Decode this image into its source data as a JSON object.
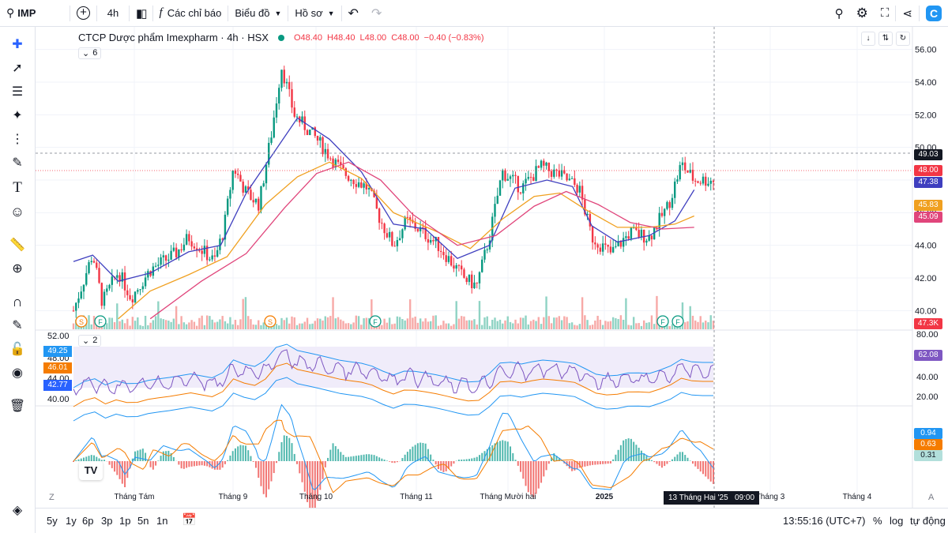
{
  "toolbar": {
    "symbol": "IMP",
    "interval": "4h",
    "indicators": "Các chỉ báo",
    "chart_menu": "Biểu đồ",
    "profile_menu": "Hồ sơ"
  },
  "legend": {
    "title": "CTCP Dược phẩm Imexpharm · 4h · HSX",
    "o": "O48.40",
    "h": "H48.40",
    "l": "L48.00",
    "c": "C48.00",
    "chg": "−0.40 (−0.83%)",
    "ind_count": "6"
  },
  "rsi_pane": {
    "ind_count": "2",
    "tags": [
      "49.25",
      "46.01",
      "42.77"
    ],
    "left_ticks": [
      "52.00",
      "48.00",
      "44.00",
      "40.00"
    ],
    "right_ticks": [
      "80.00",
      "40.00",
      "20.00"
    ],
    "current": "62.08"
  },
  "macd_pane": {
    "tags": [
      "0.94",
      "0.63",
      "0.31"
    ]
  },
  "price_tags": {
    "t1": "49.03",
    "t2": "48.00",
    "t3": "47.38",
    "t4": "45.83",
    "t5": "45.09",
    "vol": "47.3K"
  },
  "events": [
    "S",
    "F",
    "S",
    "F",
    "F",
    "F"
  ],
  "ranges": [
    "5y",
    "1y",
    "6p",
    "3p",
    "1p",
    "5n",
    "1n"
  ],
  "footer": {
    "time": "13:55:16 (UTC+7)",
    "pct": "%",
    "log": "log",
    "auto": "tự động"
  },
  "crosshair_label": "13 Tháng Hai '25   09:00",
  "colors": {
    "up": "#089981",
    "down": "#f23645",
    "ma_fast": "#3f3fbf",
    "ma_mid": "#f0a020",
    "ma_slow": "#e0457b",
    "rsi": "#7e57c2",
    "band": "#2196f3"
  },
  "chart_data": {
    "type": "candlestick",
    "title": "CTCP Dược phẩm Imexpharm · 4h · HSX",
    "ylim": [
      39,
      57
    ],
    "y_ticks": [
      56,
      54,
      52,
      50,
      48,
      46,
      44,
      42,
      40
    ],
    "x_ticks": [
      "Tháng Tám",
      "Tháng 9",
      "Tháng 10",
      "Tháng 11",
      "Tháng Mười hai",
      "2025",
      "Tháng 3",
      "Tháng 4"
    ],
    "close_path": [
      {
        "x": 0,
        "y": 40
      },
      {
        "x": 0.03,
        "y": 43.5
      },
      {
        "x": 0.045,
        "y": 40.5
      },
      {
        "x": 0.07,
        "y": 42.4
      },
      {
        "x": 0.09,
        "y": 40.8
      },
      {
        "x": 0.12,
        "y": 42.5
      },
      {
        "x": 0.16,
        "y": 43.5
      },
      {
        "x": 0.18,
        "y": 44.5
      },
      {
        "x": 0.22,
        "y": 43
      },
      {
        "x": 0.235,
        "y": 45
      },
      {
        "x": 0.25,
        "y": 48.8
      },
      {
        "x": 0.27,
        "y": 47.2
      },
      {
        "x": 0.29,
        "y": 46.5
      },
      {
        "x": 0.31,
        "y": 51
      },
      {
        "x": 0.325,
        "y": 55
      },
      {
        "x": 0.345,
        "y": 52
      },
      {
        "x": 0.38,
        "y": 50.5
      },
      {
        "x": 0.42,
        "y": 48.5
      },
      {
        "x": 0.46,
        "y": 47.5
      },
      {
        "x": 0.48,
        "y": 45.5
      },
      {
        "x": 0.5,
        "y": 44
      },
      {
        "x": 0.52,
        "y": 45.5
      },
      {
        "x": 0.54,
        "y": 45
      },
      {
        "x": 0.57,
        "y": 44
      },
      {
        "x": 0.61,
        "y": 42
      },
      {
        "x": 0.63,
        "y": 41.5
      },
      {
        "x": 0.65,
        "y": 44.5
      },
      {
        "x": 0.67,
        "y": 48.5
      },
      {
        "x": 0.7,
        "y": 47.5
      },
      {
        "x": 0.73,
        "y": 48.8
      },
      {
        "x": 0.76,
        "y": 48.3
      },
      {
        "x": 0.79,
        "y": 47.5
      },
      {
        "x": 0.81,
        "y": 44.5
      },
      {
        "x": 0.84,
        "y": 43.5
      },
      {
        "x": 0.87,
        "y": 44.8
      },
      {
        "x": 0.9,
        "y": 44.5
      },
      {
        "x": 0.93,
        "y": 46.5
      },
      {
        "x": 0.95,
        "y": 49
      },
      {
        "x": 0.97,
        "y": 48
      }
    ],
    "series": [
      {
        "name": "",
        "values": [
          [
            0,
            43
          ],
          [
            0.03,
            43.4
          ],
          [
            0.07,
            41.8
          ],
          [
            0.12,
            42.3
          ],
          [
            0.18,
            43.6
          ],
          [
            0.23,
            44
          ],
          [
            0.27,
            47.2
          ],
          [
            0.31,
            49.5
          ],
          [
            0.35,
            51.8
          ],
          [
            0.4,
            50.5
          ],
          [
            0.45,
            48.5
          ],
          [
            0.5,
            45.3
          ],
          [
            0.55,
            45
          ],
          [
            0.6,
            43.2
          ],
          [
            0.65,
            44
          ],
          [
            0.69,
            47.5
          ],
          [
            0.74,
            48
          ],
          [
            0.78,
            47.6
          ],
          [
            0.81,
            45.2
          ],
          [
            0.85,
            44.2
          ],
          [
            0.9,
            44.6
          ],
          [
            0.94,
            45.5
          ],
          [
            0.97,
            47.4
          ]
        ]
      },
      {
        "name": "",
        "values": [
          [
            0.07,
            39.5
          ],
          [
            0.12,
            41.2
          ],
          [
            0.18,
            42.2
          ],
          [
            0.24,
            43.3
          ],
          [
            0.3,
            46.5
          ],
          [
            0.35,
            48.2
          ],
          [
            0.4,
            49.1
          ],
          [
            0.45,
            48.1
          ],
          [
            0.5,
            46
          ],
          [
            0.57,
            44.8
          ],
          [
            0.62,
            43.8
          ],
          [
            0.67,
            45.6
          ],
          [
            0.72,
            47
          ],
          [
            0.76,
            47.2
          ],
          [
            0.8,
            46.2
          ],
          [
            0.85,
            45.1
          ],
          [
            0.9,
            45.1
          ],
          [
            0.94,
            45.3
          ],
          [
            0.97,
            45.8
          ]
        ]
      },
      {
        "name": "",
        "values": [
          [
            0.12,
            39.5
          ],
          [
            0.2,
            41.8
          ],
          [
            0.27,
            43.5
          ],
          [
            0.33,
            46.3
          ],
          [
            0.38,
            48.4
          ],
          [
            0.43,
            49.1
          ],
          [
            0.48,
            48
          ],
          [
            0.53,
            45.9
          ],
          [
            0.6,
            44
          ],
          [
            0.66,
            44.6
          ],
          [
            0.72,
            46.4
          ],
          [
            0.77,
            47.3
          ],
          [
            0.82,
            46.5
          ],
          [
            0.87,
            45.4
          ],
          [
            0.92,
            45
          ],
          [
            0.97,
            45.1
          ]
        ]
      }
    ]
  }
}
